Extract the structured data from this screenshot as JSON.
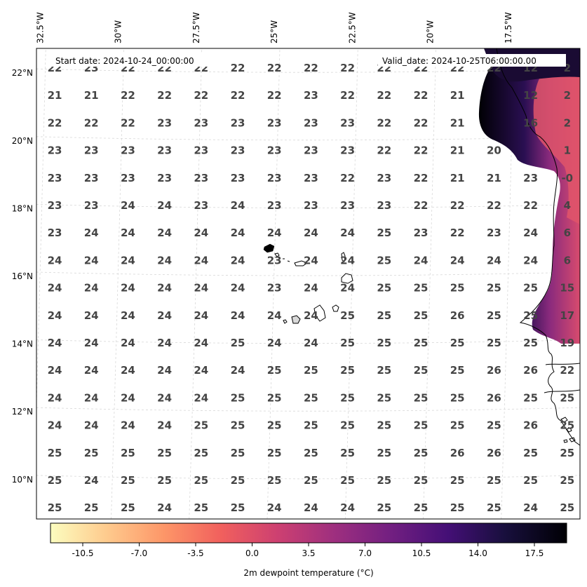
{
  "header": {
    "start_date": "Start date: 2024-10-24_00:00:00",
    "valid_date": "Valid_date: 2024-10-25T06:00:00.00"
  },
  "lon_ticks": [
    {
      "label": "32.5°W",
      "lon": -32.5
    },
    {
      "label": "30°W",
      "lon": -30
    },
    {
      "label": "27.5°W",
      "lon": -27.5
    },
    {
      "label": "25°W",
      "lon": -25
    },
    {
      "label": "22.5°W",
      "lon": -22.5
    },
    {
      "label": "20°W",
      "lon": -20
    },
    {
      "label": "17.5°W",
      "lon": -17.5
    }
  ],
  "lat_ticks": [
    {
      "label": "22°N",
      "lat": 22
    },
    {
      "label": "20°N",
      "lat": 20
    },
    {
      "label": "18°N",
      "lat": 18
    },
    {
      "label": "16°N",
      "lat": 16
    },
    {
      "label": "14°N",
      "lat": 14
    },
    {
      "label": "12°N",
      "lat": 12
    },
    {
      "label": "10°N",
      "lat": 10
    }
  ],
  "station_values": [
    [
      "22",
      "23",
      "22",
      "22",
      "22",
      "22",
      "22",
      "22",
      "22",
      "22",
      "22",
      "22",
      "22",
      "12",
      "2"
    ],
    [
      "21",
      "21",
      "22",
      "22",
      "22",
      "22",
      "22",
      "23",
      "22",
      "22",
      "22",
      "21",
      "",
      "12",
      "2"
    ],
    [
      "22",
      "22",
      "22",
      "23",
      "23",
      "23",
      "23",
      "23",
      "23",
      "22",
      "22",
      "21",
      "",
      "16",
      "2"
    ],
    [
      "23",
      "23",
      "23",
      "23",
      "23",
      "23",
      "23",
      "23",
      "23",
      "22",
      "22",
      "21",
      "20",
      "",
      "1"
    ],
    [
      "23",
      "23",
      "23",
      "23",
      "23",
      "23",
      "23",
      "23",
      "22",
      "23",
      "22",
      "21",
      "21",
      "23",
      "-0"
    ],
    [
      "23",
      "23",
      "24",
      "24",
      "23",
      "24",
      "23",
      "23",
      "23",
      "23",
      "22",
      "22",
      "22",
      "22",
      "4"
    ],
    [
      "23",
      "24",
      "24",
      "24",
      "24",
      "24",
      "24",
      "24",
      "24",
      "25",
      "23",
      "22",
      "23",
      "24",
      "6"
    ],
    [
      "24",
      "24",
      "24",
      "24",
      "24",
      "24",
      "23",
      "24",
      "24",
      "25",
      "24",
      "24",
      "24",
      "24",
      "6"
    ],
    [
      "24",
      "24",
      "24",
      "24",
      "24",
      "24",
      "23",
      "24",
      "24",
      "25",
      "25",
      "25",
      "25",
      "25",
      "15"
    ],
    [
      "24",
      "24",
      "24",
      "24",
      "24",
      "24",
      "24",
      "24",
      "25",
      "25",
      "25",
      "26",
      "25",
      "25",
      "17"
    ],
    [
      "24",
      "24",
      "24",
      "24",
      "24",
      "25",
      "24",
      "24",
      "25",
      "25",
      "25",
      "25",
      "25",
      "25",
      "19"
    ],
    [
      "24",
      "24",
      "24",
      "24",
      "24",
      "24",
      "25",
      "25",
      "25",
      "25",
      "25",
      "25",
      "26",
      "26",
      "22"
    ],
    [
      "24",
      "24",
      "24",
      "24",
      "24",
      "25",
      "25",
      "25",
      "25",
      "25",
      "25",
      "25",
      "26",
      "25",
      "25"
    ],
    [
      "24",
      "24",
      "24",
      "24",
      "25",
      "25",
      "25",
      "25",
      "25",
      "25",
      "25",
      "25",
      "25",
      "26",
      "25"
    ],
    [
      "25",
      "25",
      "25",
      "25",
      "25",
      "25",
      "25",
      "25",
      "25",
      "25",
      "25",
      "26",
      "26",
      "25",
      "25"
    ],
    [
      "25",
      "24",
      "25",
      "25",
      "25",
      "25",
      "25",
      "25",
      "25",
      "25",
      "25",
      "25",
      "25",
      "25",
      "25"
    ],
    [
      "25",
      "25",
      "25",
      "24",
      "25",
      "25",
      "24",
      "24",
      "24",
      "25",
      "25",
      "25",
      "25",
      "24",
      "25"
    ]
  ],
  "colorbar": {
    "label": "2m dewpoint temperature ($^\\circ$C)",
    "display_label": "2m dewpoint temperature (°C)",
    "vmin": -12.5,
    "vmax": 19.5,
    "ticks": [
      "-10.5",
      "-7.0",
      "-3.5",
      "0.0",
      "3.5",
      "7.0",
      "10.5",
      "14.0",
      "17.5"
    ],
    "tick_values": [
      -10.5,
      -7.0,
      -3.5,
      0.0,
      3.5,
      7.0,
      10.5,
      14.0,
      17.5
    ],
    "colormap": "magma_r",
    "colors": [
      "#fcfdbf",
      "#feca8d",
      "#fd9668",
      "#f1605d",
      "#cd4071",
      "#9e2f7f",
      "#721f81",
      "#440f76",
      "#180f3d",
      "#000004"
    ]
  }
}
